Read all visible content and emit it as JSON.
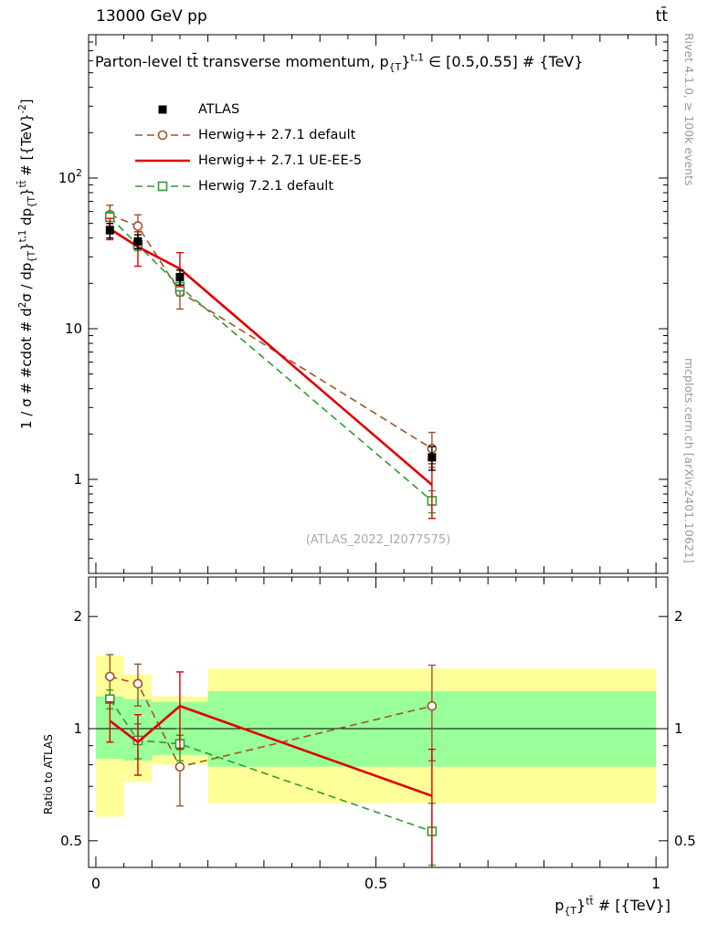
{
  "header": {
    "left": "13000 GeV pp",
    "right": "tt̄"
  },
  "side_text_top": "Rivet 4.1.0, ≥ 100k events",
  "side_text_bottom": "mcplots.cern.ch [arXiv:2401.10621]",
  "watermark": "(ATLAS_2022_I2077575)",
  "colors": {
    "atlas": "#000000",
    "herwigpp_default": "#a0522d",
    "herwigpp_ueee5": "#e10000",
    "herwig7_default": "#339933",
    "band_yellow": "#ffff99",
    "band_green": "#99ff99"
  },
  "chart_data": {
    "type": "line",
    "title_segments": [
      {
        "t": "Parton-level tt̄ transverse momentum, p"
      },
      {
        "t": "{T",
        "sub": true
      },
      {
        "t": "}"
      },
      {
        "t": "t,1",
        "sup": true
      },
      {
        "t": " ∈ [0.5,0.55] # {TeV}"
      }
    ],
    "ylabel_segments": [
      {
        "t": "1 / σ # #cdot # d"
      },
      {
        "t": "2",
        "sup": true
      },
      {
        "t": "σ / dp"
      },
      {
        "t": "{T",
        "sub": true
      },
      {
        "t": "}"
      },
      {
        "t": "t,1",
        "sup": true
      },
      {
        "t": " dp"
      },
      {
        "t": "{T",
        "sub": true
      },
      {
        "t": "}"
      },
      {
        "t": "tt̄",
        "sup": true
      },
      {
        "t": " # [{TeV}"
      },
      {
        "t": "-2",
        "sup": true
      },
      {
        "t": "]"
      }
    ],
    "xlabel_segments": [
      {
        "t": "p"
      },
      {
        "t": "{T",
        "sub": true
      },
      {
        "t": "}"
      },
      {
        "t": "tt̄",
        "sup": true
      },
      {
        "t": " # [{TeV}]"
      }
    ],
    "ratio_ylabel": "Ratio to ATLAS",
    "x_range": [
      -0.013,
      1.021
    ],
    "x_major_ticks": [
      {
        "v": 0,
        "label": "0"
      },
      {
        "v": 0.5,
        "label": "0.5"
      },
      {
        "v": 1,
        "label": "1"
      }
    ],
    "bin_edges": [
      0,
      0.05,
      0.1,
      0.2,
      1.0
    ],
    "x": [
      0.025,
      0.075,
      0.15,
      0.6
    ],
    "main_panel": {
      "ylog": true,
      "ylim": [
        0.24,
        890
      ],
      "y_major_ticks": [
        {
          "v": 1,
          "label": "1"
        },
        {
          "v": 10,
          "label": "10"
        },
        {
          "v": 100,
          "label": "10",
          "exp": "2"
        }
      ],
      "series": [
        {
          "id": "atlas",
          "name": "ATLAS",
          "color_key": "atlas",
          "marker": "filled-square",
          "line": "none",
          "line_width": 1.6,
          "z": 4,
          "y": [
            45,
            38,
            22,
            1.4
          ],
          "yerr_lo": [
            5,
            4,
            2.5,
            0.25
          ],
          "yerr_hi": [
            5,
            4,
            2.5,
            0.25
          ]
        },
        {
          "id": "herwigpp-default",
          "name": "Herwig++ 2.7.1 default",
          "color_key": "herwigpp_default",
          "marker": "open-circle",
          "line": "dashed",
          "line_width": 1.6,
          "z": 1,
          "y": [
            57,
            48,
            17.5,
            1.6
          ],
          "yerr_lo": [
            9,
            9,
            4,
            0.4
          ],
          "yerr_hi": [
            9,
            9,
            4,
            0.45
          ]
        },
        {
          "id": "herwigpp-ueee5",
          "name": "Herwig++ 2.7.1 UE-EE-5",
          "color_key": "herwigpp_ueee5",
          "marker": "none",
          "line": "solid",
          "line_width": 2.6,
          "z": 3,
          "y": [
            46,
            35,
            25,
            0.92
          ],
          "yerr_lo": [
            7,
            9,
            6,
            0.37
          ],
          "yerr_hi": [
            8,
            9,
            7,
            0.35
          ]
        },
        {
          "id": "herwig7-default",
          "name": "Herwig 7.2.1 default",
          "color_key": "herwig7_default",
          "marker": "open-square",
          "line": "dashed",
          "line_width": 1.6,
          "z": 2,
          "y": [
            55,
            36,
            19,
            0.72
          ],
          "yerr_lo": [
            5,
            3,
            2.5,
            0.12
          ],
          "yerr_hi": [
            5,
            3,
            2.5,
            0.12
          ]
        }
      ]
    },
    "ratio_panel": {
      "ylog": true,
      "ylim": [
        0.42,
        2.55
      ],
      "reference_line": 1,
      "y_major_ticks": [
        {
          "v": 0.5,
          "label": "0.5"
        },
        {
          "v": 1,
          "label": "1"
        },
        {
          "v": 2,
          "label": "2"
        }
      ],
      "y_minor_ticks": [
        0.6,
        0.7,
        0.8,
        0.9
      ],
      "bands": {
        "yellow_lo": [
          0.58,
          0.72,
          0.8,
          0.63
        ],
        "yellow_hi": [
          1.57,
          1.4,
          1.22,
          1.45
        ],
        "green_lo": [
          0.83,
          0.82,
          0.85,
          0.79
        ],
        "green_hi": [
          1.22,
          1.2,
          1.18,
          1.26
        ]
      },
      "series": [
        {
          "id": "herwigpp-default-ratio",
          "name": "Herwig++ 2.7.1 default",
          "color_key": "herwigpp_default",
          "marker": "open-circle",
          "line": "dashed",
          "line_width": 1.6,
          "z": 1,
          "y": [
            1.38,
            1.32,
            0.79,
            1.15
          ],
          "yerr_lo": [
            0.2,
            0.17,
            0.17,
            0.33
          ],
          "yerr_hi": [
            0.2,
            0.17,
            0.17,
            0.33
          ]
        },
        {
          "id": "herwigpp-ueee5-ratio",
          "name": "Herwig++ 2.7.1 UE-EE-5",
          "color_key": "herwigpp_ueee5",
          "marker": "none",
          "line": "solid",
          "line_width": 2.6,
          "z": 3,
          "y": [
            1.05,
            0.92,
            1.15,
            0.66
          ],
          "yerr_lo": [
            0.13,
            0.17,
            0.27,
            0.28
          ],
          "yerr_hi": [
            0.13,
            0.17,
            0.27,
            0.22
          ]
        },
        {
          "id": "herwig7-default-ratio",
          "name": "Herwig 7.2.1 default",
          "color_key": "herwig7_default",
          "marker": "open-square",
          "line": "dashed",
          "line_width": 1.6,
          "z": 2,
          "y": [
            1.2,
            0.93,
            0.91,
            0.53
          ],
          "yerr_lo": [
            0.07,
            0.1,
            0.09,
            0.1
          ],
          "yerr_hi": [
            0.07,
            0.1,
            0.09,
            0.1
          ]
        }
      ]
    },
    "legend": [
      {
        "label": "ATLAS",
        "marker": "filled-square",
        "line": "none",
        "line_width": 1.6,
        "color_key": "atlas"
      },
      {
        "label": "Herwig++ 2.7.1 default",
        "marker": "open-circle",
        "line": "dashed",
        "line_width": 1.6,
        "color_key": "herwigpp_default"
      },
      {
        "label": "Herwig++ 2.7.1 UE-EE-5",
        "marker": "none",
        "line": "solid",
        "line_width": 2.6,
        "color_key": "herwigpp_ueee5"
      },
      {
        "label": "Herwig 7.2.1 default",
        "marker": "open-square",
        "line": "dashed",
        "line_width": 1.6,
        "color_key": "herwig7_default"
      }
    ]
  }
}
